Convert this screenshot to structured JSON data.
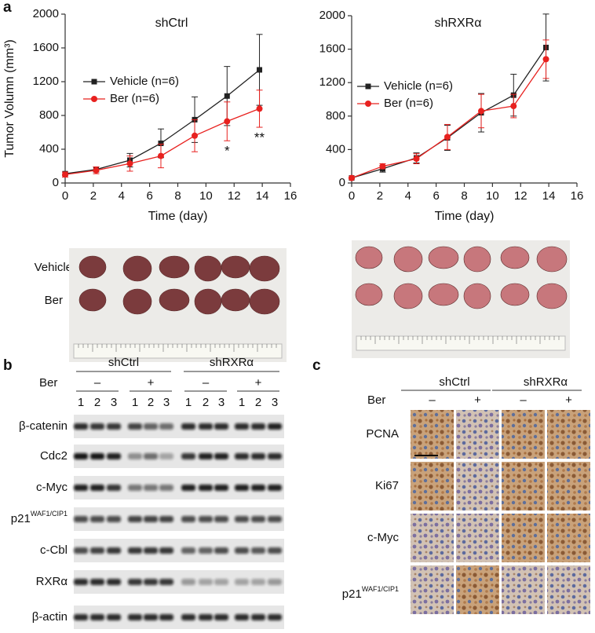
{
  "panel_labels": [
    "a",
    "b",
    "c"
  ],
  "chart_data": [
    {
      "type": "line",
      "title": "shCtrl",
      "x_label": "Time (day)",
      "y_label": "Tumor Volumn (mm³)",
      "x": [
        0,
        2.2,
        4.6,
        6.8,
        9.2,
        11.5,
        13.8
      ],
      "xlim": [
        0,
        16
      ],
      "xticks": [
        0,
        2,
        4,
        6,
        8,
        10,
        12,
        14,
        16
      ],
      "ylim": [
        0,
        2000
      ],
      "yticks": [
        0,
        400,
        800,
        1200,
        1600,
        2000
      ],
      "series": [
        {
          "name": "Vehicle (n=6)",
          "color": "#222222",
          "marker": "square",
          "values": [
            110,
            160,
            270,
            470,
            750,
            1030,
            1340
          ],
          "errors": [
            20,
            30,
            80,
            170,
            270,
            350,
            420
          ]
        },
        {
          "name": "Ber (n=6)",
          "color": "#e8211f",
          "marker": "circle",
          "values": [
            100,
            150,
            230,
            320,
            560,
            730,
            880
          ],
          "errors": [
            30,
            40,
            90,
            140,
            190,
            230,
            220
          ]
        }
      ],
      "annotations": [
        "*",
        "**"
      ]
    },
    {
      "type": "line",
      "title": "shRXRα",
      "x_label": "Time (day)",
      "x": [
        0,
        2.2,
        4.6,
        6.8,
        9.2,
        11.5,
        13.8
      ],
      "xlim": [
        0,
        16
      ],
      "xticks": [
        0,
        2,
        4,
        6,
        8,
        10,
        12,
        14,
        16
      ],
      "ylim": [
        0,
        2000
      ],
      "yticks": [
        0,
        400,
        800,
        1200,
        1600,
        2000
      ],
      "series": [
        {
          "name": "Vehicle (n=6)",
          "color": "#222222",
          "marker": "square",
          "values": [
            60,
            170,
            300,
            540,
            840,
            1050,
            1620
          ],
          "errors": [
            10,
            40,
            60,
            150,
            230,
            250,
            400
          ]
        },
        {
          "name": "Ber (n=6)",
          "color": "#e8211f",
          "marker": "circle",
          "values": [
            60,
            200,
            290,
            550,
            860,
            920,
            1480
          ],
          "errors": [
            10,
            30,
            60,
            150,
            200,
            140,
            230
          ]
        }
      ]
    }
  ],
  "photos": {
    "row_labels": [
      "Vehicle",
      "Ber"
    ]
  },
  "blot": {
    "groups": [
      "shCtrl",
      "shRXRα"
    ],
    "treatment": "Ber",
    "signs": [
      "–",
      "+",
      "–",
      "+"
    ],
    "lanes": [
      "1",
      "2",
      "3",
      "1",
      "2",
      "3",
      "1",
      "2",
      "3",
      "1",
      "2",
      "3"
    ],
    "rows": [
      {
        "name": "β-catenin"
      },
      {
        "name": "Cdc2"
      },
      {
        "name": "c-Myc"
      },
      {
        "name": "p21",
        "superscript": "WAF1/CIP1"
      },
      {
        "name": "c-Cbl"
      },
      {
        "name": "RXRα"
      },
      {
        "name": "β-actin"
      }
    ]
  },
  "ihc": {
    "groups": [
      "shCtrl",
      "shRXRα"
    ],
    "treatment": "Ber",
    "signs": [
      "–",
      "+",
      "–",
      "+"
    ],
    "rows": [
      {
        "name": "PCNA"
      },
      {
        "name": "Ki67"
      },
      {
        "name": "c-Myc"
      },
      {
        "name": "p21",
        "superscript": "WAF1/CIP1"
      }
    ]
  }
}
